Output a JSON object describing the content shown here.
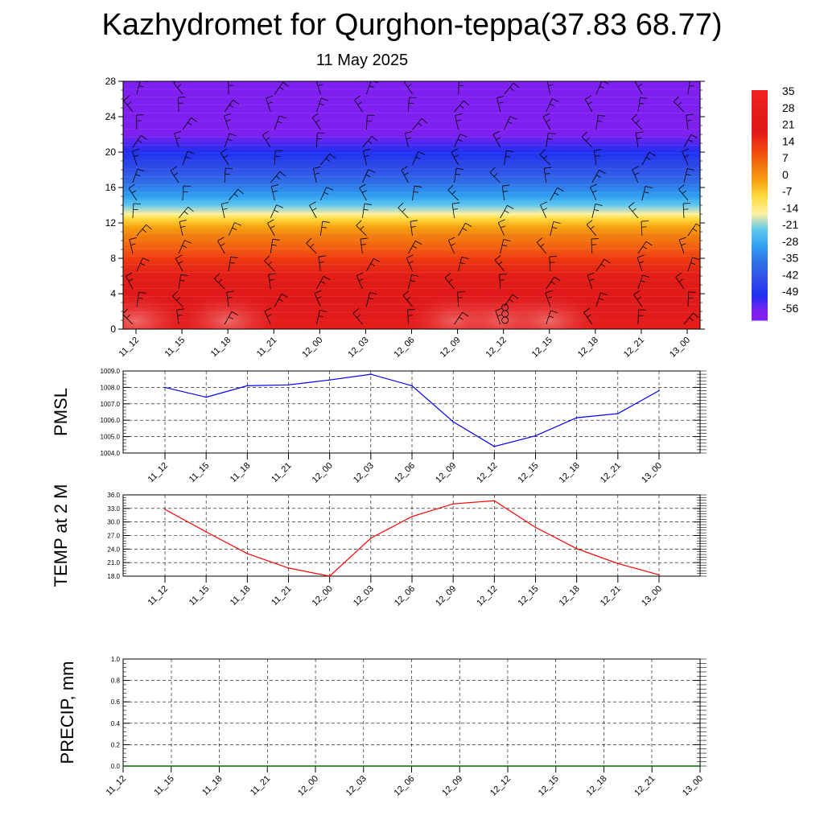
{
  "header": {
    "title": "Kazhydromet for Qurghon-teppa(37.83 68.77)",
    "subtitle": "11 May 2025"
  },
  "time_labels": [
    "11_12",
    "11_15",
    "11_18",
    "11_21",
    "12_00",
    "12_03",
    "12_06",
    "12_09",
    "12_12",
    "12_15",
    "12_18",
    "12_21",
    "13_00"
  ],
  "colors": {
    "pmsl_line": "#0000ff",
    "temp_line": "#ff0000",
    "precip_line": "#006400",
    "grid": "#000000"
  },
  "chart_data": [
    {
      "type": "heatmap",
      "name": "vertical-profile",
      "title": "",
      "xlabel": "",
      "ylabel": "",
      "x": [
        "11_12",
        "11_15",
        "11_18",
        "11_21",
        "12_00",
        "12_03",
        "12_06",
        "12_09",
        "12_12",
        "12_15",
        "12_18",
        "12_21",
        "13_00"
      ],
      "y_ticks": [
        0,
        4,
        8,
        12,
        16,
        20,
        24,
        28
      ],
      "ylim": [
        0,
        28
      ],
      "surface_temperature": [
        33,
        30,
        33,
        30,
        28,
        28,
        30,
        33,
        35,
        33,
        30,
        30,
        30
      ],
      "temperature_profile": [
        {
          "y": 0,
          "t": 30
        },
        {
          "y": 2,
          "t": 27
        },
        {
          "y": 4,
          "t": 24
        },
        {
          "y": 6,
          "t": 20
        },
        {
          "y": 8,
          "t": 15
        },
        {
          "y": 9,
          "t": 10
        },
        {
          "y": 10.5,
          "t": 5
        },
        {
          "y": 11.5,
          "t": 0
        },
        {
          "y": 12.5,
          "t": -7
        },
        {
          "y": 13,
          "t": -14
        },
        {
          "y": 14,
          "t": -21
        },
        {
          "y": 15,
          "t": -28
        },
        {
          "y": 16.5,
          "t": -35
        },
        {
          "y": 18,
          "t": -42
        },
        {
          "y": 20,
          "t": -49
        },
        {
          "y": 22,
          "t": -56
        },
        {
          "y": 28,
          "t": -58
        }
      ],
      "colorbar": {
        "labels": [
          "35",
          "28",
          "21",
          "14",
          "7",
          "0",
          "-7",
          "-14",
          "-21",
          "-28",
          "-35",
          "-42",
          "-49",
          "-56"
        ],
        "values": [
          35,
          28,
          21,
          14,
          7,
          0,
          -7,
          -14,
          -21,
          -28,
          -35,
          -42,
          -49,
          -56
        ],
        "colors": [
          "#ee2020",
          "#e11a1a",
          "#e01818",
          "#f04010",
          "#f27010",
          "#f7a010",
          "#ffdd40",
          "#fff0a0",
          "#5fc8f0",
          "#30a0f0",
          "#3070e6",
          "#3050e6",
          "#2030f0",
          "#8020f0"
        ]
      },
      "wind_barbs": "present",
      "grid": false
    },
    {
      "type": "line",
      "name": "pmsl",
      "ylabel": "PMSL",
      "x": [
        "11_12",
        "11_15",
        "11_18",
        "11_21",
        "12_00",
        "12_03",
        "12_06",
        "12_09",
        "12_12",
        "12_15",
        "12_18",
        "12_21",
        "13_00"
      ],
      "series": [
        {
          "values": [
            1008.0,
            1007.4,
            1008.1,
            1008.15,
            1008.45,
            1008.8,
            1008.1,
            1005.9,
            1004.4,
            1005.05,
            1006.15,
            1006.4,
            1007.8
          ]
        }
      ],
      "ylim": [
        1004.0,
        1009.0
      ],
      "y_ticks": [
        "1004.0",
        "1005.0",
        "1006.0",
        "1007.0",
        "1008.0",
        "1009.0"
      ],
      "grid": true
    },
    {
      "type": "line",
      "name": "temp-2m",
      "ylabel": "TEMP at 2 M",
      "x": [
        "11_12",
        "11_15",
        "11_18",
        "11_21",
        "12_00",
        "12_03",
        "12_06",
        "12_09",
        "12_12",
        "12_15",
        "12_18",
        "12_21",
        "13_00"
      ],
      "series": [
        {
          "values": [
            32.8,
            27.8,
            23.0,
            19.8,
            18.0,
            26.4,
            31.2,
            34.0,
            34.7,
            28.8,
            24.1,
            20.8,
            18.3
          ]
        }
      ],
      "ylim": [
        18.0,
        36.0
      ],
      "y_ticks": [
        "18.0",
        "21.0",
        "24.0",
        "27.0",
        "30.0",
        "33.0",
        "36.0"
      ],
      "grid": true
    },
    {
      "type": "line",
      "name": "precip",
      "ylabel": "PRECIP, mm",
      "x": [
        "11_12",
        "11_15",
        "11_18",
        "11_21",
        "12_00",
        "12_03",
        "12_06",
        "12_09",
        "12_12",
        "12_15",
        "12_18",
        "12_21",
        "13_00"
      ],
      "series": [
        {
          "values": [
            0,
            0,
            0,
            0,
            0,
            0,
            0,
            0,
            0,
            0,
            0,
            0,
            0
          ]
        }
      ],
      "ylim": [
        0.0,
        1.0
      ],
      "y_ticks": [
        "0.0",
        "0.2",
        "0.4",
        "0.6",
        "0.8",
        "1.0"
      ],
      "grid": true
    }
  ]
}
